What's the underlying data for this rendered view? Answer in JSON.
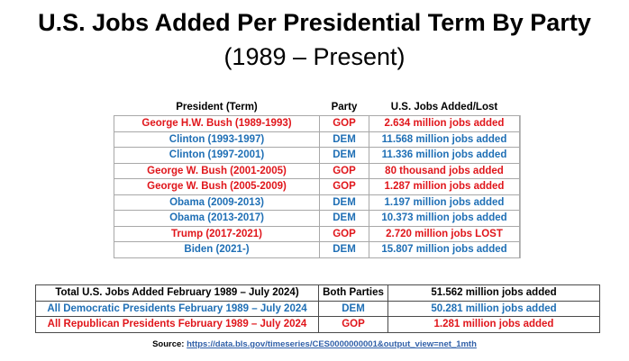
{
  "title": "U.S. Jobs Added Per Presidential Term By Party",
  "subtitle": "(1989 – Present)",
  "main_table": {
    "headers": [
      "President (Term)",
      "Party",
      "U.S. Jobs Added/Lost"
    ],
    "rows": [
      {
        "president": "George H.W. Bush (1989-1993)",
        "party": "GOP",
        "jobs": "2.634 million jobs added",
        "color": "#e0161b"
      },
      {
        "president": "Clinton (1993-1997)",
        "party": "DEM",
        "jobs": "11.568 million jobs added",
        "color": "#1f6fb5"
      },
      {
        "president": "Clinton (1997-2001)",
        "party": "DEM",
        "jobs": "11.336 million jobs added",
        "color": "#1f6fb5"
      },
      {
        "president": "George W. Bush (2001-2005)",
        "party": "GOP",
        "jobs": "80 thousand jobs added",
        "color": "#e0161b"
      },
      {
        "president": "George W. Bush (2005-2009)",
        "party": "GOP",
        "jobs": "1.287 million jobs added",
        "color": "#e0161b"
      },
      {
        "president": "Obama (2009-2013)",
        "party": "DEM",
        "jobs": "1.197 million jobs added",
        "color": "#1f6fb5"
      },
      {
        "president": "Obama (2013-2017)",
        "party": "DEM",
        "jobs": "10.373 million jobs added",
        "color": "#1f6fb5"
      },
      {
        "president": "Trump (2017-2021)",
        "party": "GOP",
        "jobs": "2.720 million jobs LOST",
        "color": "#e0161b"
      },
      {
        "president": "Biden (2021-)",
        "party": "DEM",
        "jobs": "15.807 million jobs added",
        "color": "#1f6fb5"
      }
    ]
  },
  "totals_table": {
    "rows": [
      {
        "label": "Total U.S. Jobs Added February 1989 – July 2024)",
        "party": "Both Parties",
        "jobs": "51.562 million jobs added",
        "color": "#000000"
      },
      {
        "label": "All Democratic Presidents February 1989 – July 2024",
        "party": "DEM",
        "jobs": "50.281 million jobs added",
        "color": "#1f6fb5"
      },
      {
        "label": "All Republican Presidents February 1989 – July 2024",
        "party": "GOP",
        "jobs": "1.281 million jobs added",
        "color": "#e0161b"
      }
    ]
  },
  "source": {
    "label": "Source:",
    "url": "https://data.bls.gov/timeseries/CES0000000001&output_view=net_1mth"
  }
}
